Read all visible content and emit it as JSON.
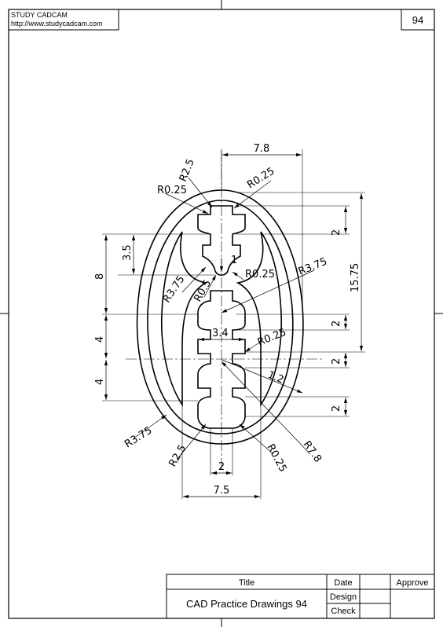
{
  "header": {
    "brand": "STUDY CADCAM",
    "url": "http://www.studycadcam.com",
    "page_number": "94"
  },
  "title_block": {
    "title_label": "Title",
    "title_value": "CAD Practice Drawings 94",
    "date_label": "Date",
    "design_label": "Design",
    "check_label": "Check",
    "approve_label": "Approve"
  },
  "dimensions": {
    "top_width": "7.8",
    "r25_top": "R2.5",
    "r025_top_left": "R0.25",
    "r025_top_right": "R0.25",
    "right_2_top": "2",
    "left_35": "3.5",
    "left_8": "8",
    "center_1": "1",
    "r05": "R0.5",
    "r375_left_mid": "R3.75",
    "r025_mid": "R0.25",
    "r375_right": "R3.75",
    "overall_1575": "15.75",
    "right_2_mid": "2",
    "left_4_top": "4",
    "center_34": "3.4",
    "r025_lower": "R0.25",
    "right_2_lower": "2",
    "offset_12": "1.2",
    "left_4_bottom": "4",
    "right_2_bottom": "2",
    "r375_bottom_left": "R3.75",
    "r25_bottom": "R2.5",
    "bottom_2": "2",
    "r025_bottom": "R0.25",
    "r78": "R7.8",
    "bottom_width": "7.5"
  }
}
